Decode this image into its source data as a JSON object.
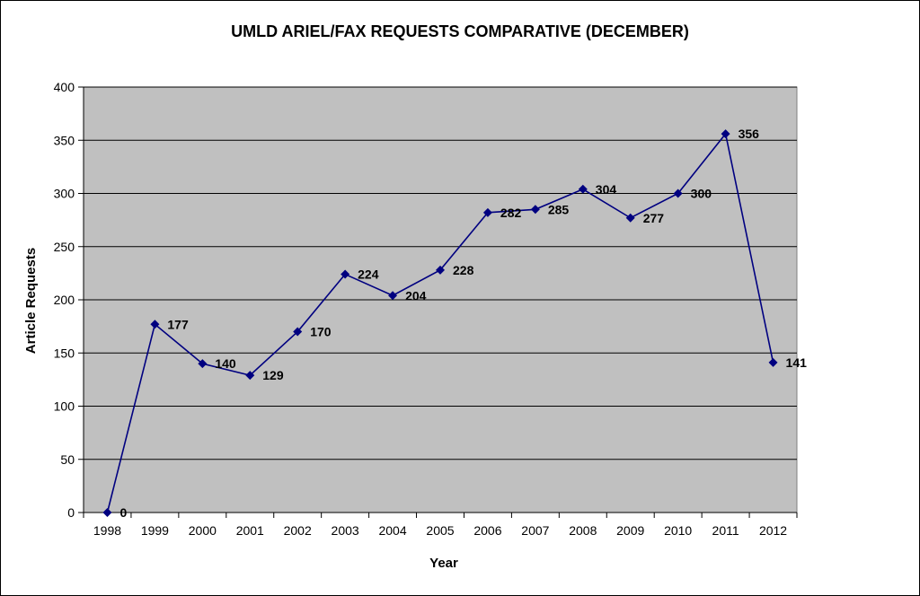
{
  "chart_data": {
    "type": "line",
    "title": "UMLD ARIEL/FAX REQUESTS COMPARATIVE (DECEMBER)",
    "xlabel": "Year",
    "ylabel": "Article Requests",
    "categories": [
      "1998",
      "1999",
      "2000",
      "2001",
      "2002",
      "2003",
      "2004",
      "2005",
      "2006",
      "2007",
      "2008",
      "2009",
      "2010",
      "2011",
      "2012"
    ],
    "series": [
      {
        "values": [
          0,
          177,
          140,
          129,
          170,
          224,
          204,
          228,
          282,
          285,
          304,
          277,
          300,
          356,
          141
        ]
      }
    ],
    "ylim": [
      0,
      400
    ],
    "yticks": [
      "0",
      "50",
      "100",
      "150",
      "200",
      "250",
      "300",
      "350",
      "400"
    ],
    "data_labels": [
      "0",
      "177",
      "140",
      "129",
      "170",
      "224",
      "204",
      "228",
      "282",
      "285",
      "304",
      "277",
      "300",
      "356",
      "141"
    ],
    "grid": true,
    "legend": "none",
    "colors": {
      "line": "#000080",
      "plot_bg": "#c0c0c0",
      "grid": "#000000"
    }
  }
}
